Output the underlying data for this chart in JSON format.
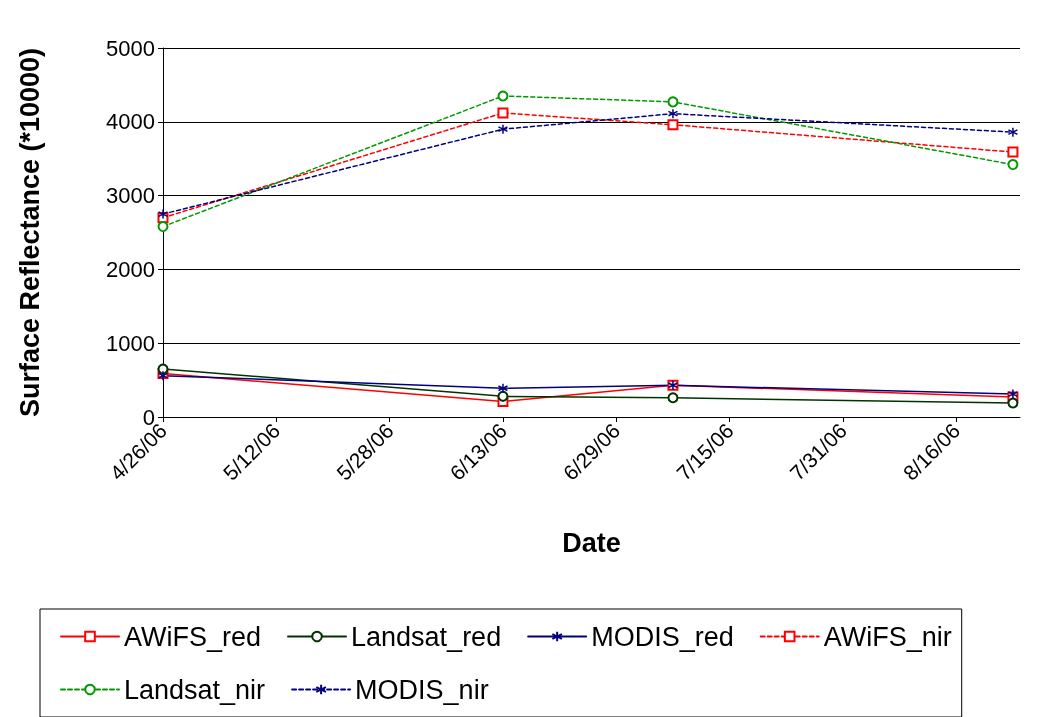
{
  "chart_data": {
    "type": "line",
    "xlabel": "Date",
    "ylabel": "Surface Reflectance (*10000)",
    "x": [
      "2006-04-26",
      "2006-06-13",
      "2006-07-07",
      "2006-08-24"
    ],
    "series": [
      {
        "name": "AWiFS_red",
        "color": "#ff0000",
        "marker": "square",
        "line_style": "solid",
        "values": [
          590,
          210,
          430,
          270
        ]
      },
      {
        "name": "Landsat_red",
        "color": "#003300",
        "marker": "circle",
        "line_style": "solid",
        "values": [
          650,
          280,
          260,
          190
        ]
      },
      {
        "name": "MODIS_red",
        "color": "#000080",
        "marker": "cross",
        "line_style": "solid",
        "values": [
          560,
          390,
          430,
          310
        ]
      },
      {
        "name": "AWiFS_nir",
        "color": "#ff0000",
        "marker": "square",
        "line_style": "dashed",
        "values": [
          2700,
          4120,
          3960,
          3590
        ]
      },
      {
        "name": "Landsat_nir",
        "color": "#009900",
        "marker": "circle",
        "line_style": "dashed",
        "values": [
          2580,
          4350,
          4270,
          3420
        ]
      },
      {
        "name": "MODIS_nir",
        "color": "#000080",
        "marker": "cross",
        "line_style": "dashed",
        "values": [
          2750,
          3900,
          4110,
          3860
        ]
      }
    ],
    "xlim": [
      "2006-04-26",
      "2006-08-25"
    ],
    "xticks": [
      {
        "value": "2006-04-26",
        "label": "4/26/06"
      },
      {
        "value": "2006-05-12",
        "label": "5/12/06"
      },
      {
        "value": "2006-05-28",
        "label": "5/28/06"
      },
      {
        "value": "2006-06-13",
        "label": "6/13/06"
      },
      {
        "value": "2006-06-29",
        "label": "6/29/06"
      },
      {
        "value": "2006-07-15",
        "label": "7/15/06"
      },
      {
        "value": "2006-07-31",
        "label": "7/31/06"
      },
      {
        "value": "2006-08-16",
        "label": "8/16/06"
      }
    ],
    "ylim": [
      0,
      5000
    ],
    "yticks": [
      0,
      1000,
      2000,
      3000,
      4000,
      5000
    ],
    "grid": "y",
    "legend": "bottom"
  }
}
